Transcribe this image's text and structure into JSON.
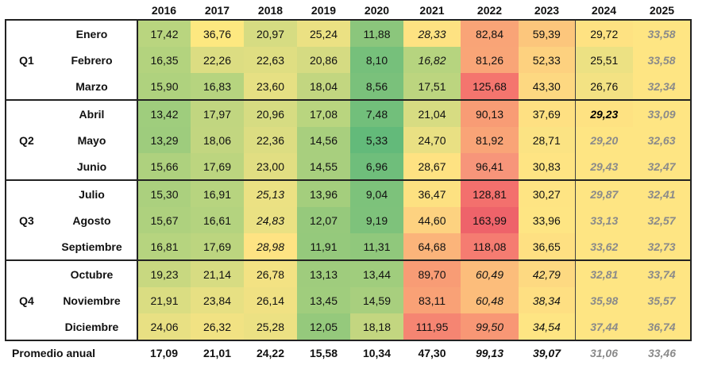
{
  "years": [
    "2016",
    "2017",
    "2018",
    "2019",
    "2020",
    "2021",
    "2022",
    "2023",
    "2024",
    "2025"
  ],
  "quarters": [
    {
      "label": "Q1",
      "months": [
        {
          "name": "Enero",
          "values": [
            "17,42",
            "36,76",
            "20,97",
            "25,24",
            "11,88",
            "28,33",
            "82,84",
            "59,39",
            "29,72",
            "33,58"
          ],
          "colors": [
            "#b9d57f",
            "#fde880",
            "#d6dc82",
            "#ebe183",
            "#8bc67c",
            "#fee282",
            "#f9a477",
            "#fcc67c",
            "#fee282",
            "#fee583"
          ],
          "styles": [
            "",
            "",
            "",
            "",
            "",
            "i",
            "",
            "",
            "",
            "f"
          ]
        },
        {
          "name": "Febrero",
          "values": [
            "16,35",
            "22,26",
            "22,63",
            "20,86",
            "8,10",
            "16,82",
            "81,26",
            "52,33",
            "25,51",
            "33,58"
          ],
          "colors": [
            "#b3d37e",
            "#dcdd82",
            "#dfde82",
            "#d5db82",
            "#76c07b",
            "#b6d47f",
            "#f9a577",
            "#fdd17f",
            "#ece183",
            "#fee583"
          ],
          "styles": [
            "",
            "",
            "",
            "",
            "",
            "i",
            "",
            "",
            "",
            "f"
          ]
        },
        {
          "name": "Marzo",
          "values": [
            "15,90",
            "16,83",
            "23,60",
            "18,04",
            "8,56",
            "17,51",
            "125,68",
            "43,30",
            "26,76",
            "32,34"
          ],
          "colors": [
            "#afd27e",
            "#b6d47f",
            "#e6e083",
            "#c2d680",
            "#7ac17b",
            "#bcd57f",
            "#f4756e",
            "#fdd881",
            "#f3e283",
            "#fee583"
          ],
          "styles": [
            "",
            "",
            "",
            "",
            "",
            "",
            "",
            "",
            "",
            "f"
          ]
        }
      ]
    },
    {
      "label": "Q2",
      "months": [
        {
          "name": "Abril",
          "values": [
            "13,42",
            "17,97",
            "20,96",
            "17,08",
            "7,48",
            "21,04",
            "90,13",
            "37,69",
            "29,23",
            "33,09"
          ],
          "colors": [
            "#9fcd7d",
            "#c1d680",
            "#d6dc82",
            "#b9d57f",
            "#72bf7b",
            "#d7dc82",
            "#f89c75",
            "#fee082",
            "#fee282",
            "#fee583"
          ],
          "styles": [
            "",
            "",
            "",
            "",
            "",
            "",
            "",
            "",
            "b",
            "f"
          ]
        },
        {
          "name": "Mayo",
          "values": [
            "13,29",
            "18,06",
            "22,36",
            "14,56",
            "5,33",
            "24,70",
            "81,92",
            "28,71",
            "29,20",
            "32,63"
          ],
          "colors": [
            "#9ecc7d",
            "#c2d680",
            "#dcdd82",
            "#a8cf7e",
            "#63ba7a",
            "#e9e083",
            "#f9a477",
            "#fbe383",
            "#fee583",
            "#fee583"
          ],
          "styles": [
            "",
            "",
            "",
            "",
            "",
            "",
            "",
            "",
            "f",
            "f"
          ]
        },
        {
          "name": "Junio",
          "values": [
            "15,66",
            "17,69",
            "23,00",
            "14,55",
            "6,96",
            "28,67",
            "96,41",
            "30,83",
            "29,43",
            "32,47"
          ],
          "colors": [
            "#aed17e",
            "#bcd57f",
            "#e1de82",
            "#a8cf7e",
            "#6fbe7b",
            "#fee282",
            "#f7957a",
            "#fee483",
            "#fee583",
            "#fee583"
          ],
          "styles": [
            "",
            "",
            "",
            "",
            "",
            "",
            "",
            "",
            "f",
            "f"
          ]
        }
      ]
    },
    {
      "label": "Q3",
      "months": [
        {
          "name": "Julio",
          "values": [
            "15,30",
            "16,91",
            "25,13",
            "13,96",
            "9,04",
            "36,47",
            "128,81",
            "30,27",
            "29,87",
            "32,41"
          ],
          "colors": [
            "#abd07e",
            "#b7d47f",
            "#ebe183",
            "#a4ce7d",
            "#7dc27b",
            "#fde181",
            "#f3706d",
            "#fee483",
            "#fee583",
            "#fee583"
          ],
          "styles": [
            "",
            "",
            "i",
            "",
            "",
            "",
            "",
            "",
            "f",
            "f"
          ]
        },
        {
          "name": "Agosto",
          "values": [
            "15,67",
            "16,61",
            "24,83",
            "12,07",
            "9,19",
            "44,60",
            "163,99",
            "33,96",
            "33,13",
            "32,57"
          ],
          "colors": [
            "#aed17e",
            "#b4d37f",
            "#eae183",
            "#96c97c",
            "#7ec27b",
            "#fdd280",
            "#ee636a",
            "#fee583",
            "#fee583",
            "#fee583"
          ],
          "styles": [
            "",
            "",
            "i",
            "",
            "",
            "",
            "",
            "",
            "f",
            "f"
          ]
        },
        {
          "name": "Septiembre",
          "values": [
            "16,81",
            "17,69",
            "28,98",
            "11,91",
            "11,31",
            "64,68",
            "118,08",
            "36,65",
            "33,62",
            "32,73"
          ],
          "colors": [
            "#b6d47f",
            "#bcd57f",
            "#fee383",
            "#95c97c",
            "#90c87c",
            "#fbb47a",
            "#f57c71",
            "#fee082",
            "#fee583",
            "#fee583"
          ],
          "styles": [
            "",
            "",
            "i",
            "",
            "",
            "",
            "",
            "",
            "f",
            "f"
          ]
        }
      ]
    },
    {
      "label": "Q4",
      "months": [
        {
          "name": "Octubre",
          "values": [
            "19,23",
            "21,14",
            "26,78",
            "13,13",
            "13,44",
            "89,70",
            "60,49",
            "42,79",
            "32,81",
            "33,74"
          ],
          "colors": [
            "#c8d880",
            "#d7dc82",
            "#f3e283",
            "#9fcc7d",
            "#a0cd7d",
            "#f89c75",
            "#fcbd7b",
            "#fdd981",
            "#fee583",
            "#fee583"
          ],
          "styles": [
            "",
            "",
            "",
            "",
            "",
            "",
            "i",
            "i",
            "f",
            "f"
          ]
        },
        {
          "name": "Noviembre",
          "values": [
            "21,91",
            "23,84",
            "26,14",
            "13,45",
            "14,59",
            "83,11",
            "60,48",
            "38,34",
            "35,98",
            "35,57"
          ],
          "colors": [
            "#dadd82",
            "#e7e083",
            "#f0e183",
            "#a0cd7d",
            "#a8cf7e",
            "#f9a176",
            "#fcbd7b",
            "#fedf82",
            "#fee583",
            "#fee583"
          ],
          "styles": [
            "",
            "",
            "",
            "",
            "",
            "",
            "i",
            "i",
            "f",
            "f"
          ]
        },
        {
          "name": "Diciembre",
          "values": [
            "24,06",
            "26,32",
            "25,28",
            "12,05",
            "18,18",
            "111,95",
            "99,50",
            "34,54",
            "37,44",
            "36,74"
          ],
          "colors": [
            "#e8e083",
            "#f1e283",
            "#ece183",
            "#95c97c",
            "#c3d680",
            "#f58572",
            "#f89775",
            "#fee583",
            "#fee583",
            "#fee583"
          ],
          "styles": [
            "",
            "",
            "",
            "",
            "",
            "",
            "i",
            "i",
            "f",
            "f"
          ]
        }
      ]
    }
  ],
  "average": {
    "label": "Promedio anual",
    "values": [
      "17,09",
      "21,01",
      "24,22",
      "15,58",
      "10,34",
      "47,30",
      "99,13",
      "39,07",
      "31,06",
      "33,46"
    ],
    "styles": [
      "",
      "",
      "",
      "",
      "",
      "",
      "i",
      "i",
      "f",
      "f"
    ]
  }
}
